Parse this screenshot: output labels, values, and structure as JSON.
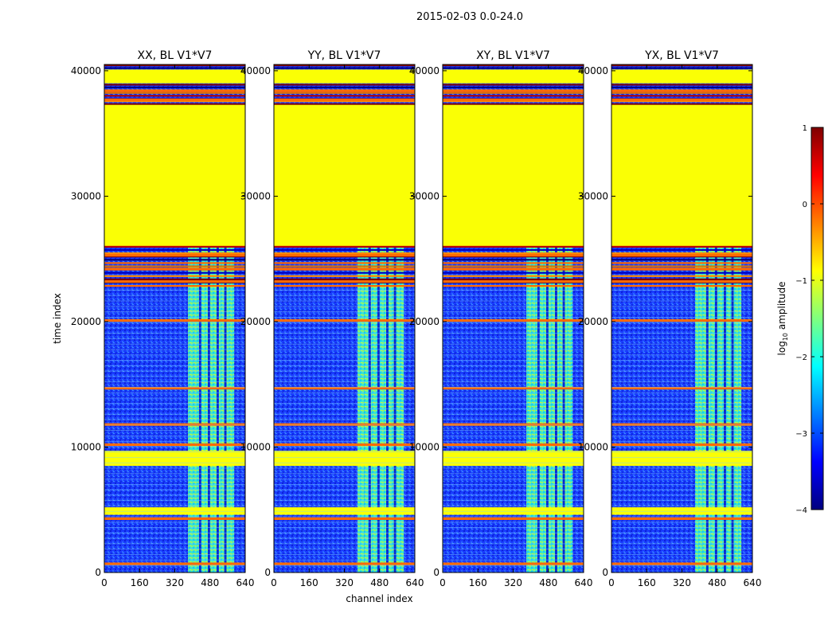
{
  "figure": {
    "suptitle": "2015-02-03 0.0-24.0"
  },
  "chart_data": [
    {
      "type": "heatmap",
      "title": "XX, BL V1*V7",
      "xlabel": "",
      "ylabel": "time index",
      "xlim": [
        0,
        640
      ],
      "ylim": [
        0,
        40500
      ],
      "x_ticks": [
        0,
        160,
        320,
        480,
        640
      ],
      "y_ticks": [
        0,
        10000,
        20000,
        30000,
        40000
      ]
    },
    {
      "type": "heatmap",
      "title": "YY, BL V1*V7",
      "xlabel": "channel index",
      "ylabel": "",
      "xlim": [
        0,
        640
      ],
      "ylim": [
        0,
        40500
      ],
      "x_ticks": [
        0,
        160,
        320,
        480,
        640
      ],
      "y_ticks": [
        0,
        10000,
        20000,
        30000,
        40000
      ]
    },
    {
      "type": "heatmap",
      "title": "XY, BL V1*V7",
      "xlabel": "",
      "ylabel": "",
      "xlim": [
        0,
        640
      ],
      "ylim": [
        0,
        40500
      ],
      "x_ticks": [
        0,
        160,
        320,
        480,
        640
      ],
      "y_ticks": [
        0,
        10000,
        20000,
        30000,
        40000
      ]
    },
    {
      "type": "heatmap",
      "title": "YX, BL V1*V7",
      "xlabel": "",
      "ylabel": "",
      "xlim": [
        0,
        640
      ],
      "ylim": [
        0,
        40500
      ],
      "x_ticks": [
        0,
        160,
        320,
        480,
        640
      ],
      "y_ticks": [
        0,
        10000,
        20000,
        30000,
        40000
      ]
    }
  ],
  "colorbar": {
    "label": "log10 amplitude",
    "label_main": "log",
    "label_sub": "10",
    "label_rest": " amplitude",
    "range": [
      -4,
      1
    ],
    "ticks": [
      1,
      0,
      -1,
      -2,
      -3,
      -4
    ],
    "tick_labels": [
      "1",
      "0",
      "−1",
      "−2",
      "−3",
      "−4"
    ],
    "colormap": "jet",
    "colors": [
      "#00007f",
      "#0000ff",
      "#007fff",
      "#00ffff",
      "#7fff7f",
      "#ffff00",
      "#ff7f00",
      "#ff0000",
      "#7f0000"
    ]
  },
  "data_regions": {
    "flag_fill_level": -0.9,
    "noise_level": -3.4,
    "band_channels": [
      [
        380,
        410
      ],
      [
        410,
        430
      ],
      [
        440,
        470
      ],
      [
        480,
        510
      ],
      [
        520,
        545
      ],
      [
        555,
        590
      ]
    ],
    "band_level": -1.5,
    "flagged_time_ranges": [
      [
        26000,
        37300
      ],
      [
        8500,
        9700
      ],
      [
        4600,
        5200
      ],
      [
        39000,
        40100
      ]
    ],
    "flag_lines": [
      700,
      4300,
      10200,
      11800,
      14700,
      20100,
      23200,
      24200,
      25300,
      37700,
      38400
    ]
  }
}
